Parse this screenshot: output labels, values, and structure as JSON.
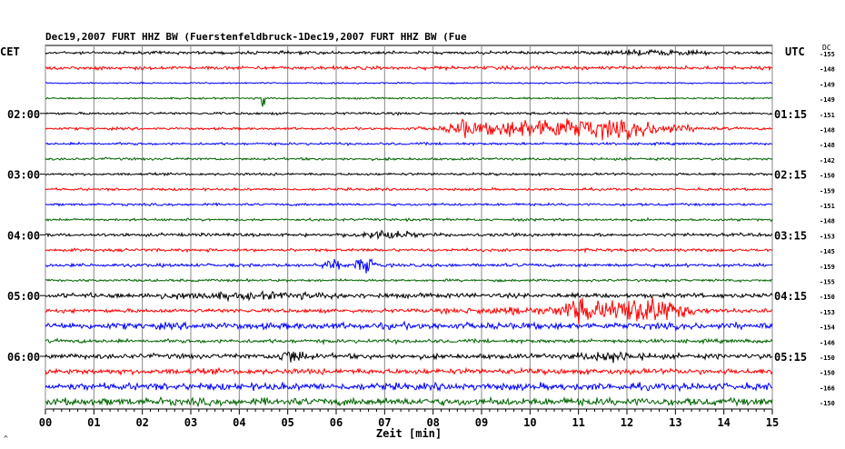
{
  "header": {
    "title": "Dec19,2007   FURT HHZ BW (Fuerstenfeldbruck-1Dec19,2007   FURT HHZ BW (Fue",
    "left_timezone": "CET",
    "right_timezone": "UTC",
    "dc_label": "DC",
    "corner_mark": "^"
  },
  "chart_data": {
    "type": "line",
    "title": "Dec19,2007   FURT HHZ BW (Fuerstenfeldbruck-1Dec19,2007   FURT HHZ BW (Fue",
    "xlabel": "Zeit [min]",
    "x_range": [
      0,
      15
    ],
    "x_ticks": [
      "00",
      "01",
      "02",
      "03",
      "04",
      "05",
      "06",
      "07",
      "08",
      "09",
      "10",
      "11",
      "12",
      "13",
      "14",
      "15"
    ],
    "grid": true,
    "left_hour_labels": [
      {
        "trace": 4,
        "label": "02:00"
      },
      {
        "trace": 8,
        "label": "03:00"
      },
      {
        "trace": 12,
        "label": "04:00"
      },
      {
        "trace": 16,
        "label": "05:00"
      },
      {
        "trace": 20,
        "label": "06:00"
      }
    ],
    "right_hour_labels": [
      {
        "trace": 4,
        "label": "01:15"
      },
      {
        "trace": 8,
        "label": "02:15"
      },
      {
        "trace": 12,
        "label": "03:15"
      },
      {
        "trace": 16,
        "label": "04:15"
      },
      {
        "trace": 20,
        "label": "05:15"
      }
    ],
    "colors": [
      "#000000",
      "#ff0000",
      "#0000ff",
      "#006400"
    ],
    "traces": [
      {
        "dc": "-155",
        "noise": 1.2,
        "events": [
          {
            "t": 12.5,
            "w": 1.2,
            "a": 1.5
          }
        ]
      },
      {
        "dc": "-148",
        "noise": 1.4,
        "events": []
      },
      {
        "dc": "-149",
        "noise": 0.6,
        "events": []
      },
      {
        "dc": "-149",
        "noise": 0.7,
        "events": [
          {
            "t": 4.5,
            "w": 0.05,
            "a": 14
          }
        ]
      },
      {
        "dc": "-151",
        "noise": 1.0,
        "events": []
      },
      {
        "dc": "-148",
        "noise": 1.0,
        "events": [
          {
            "t": 8.6,
            "w": 0.3,
            "a": 6
          },
          {
            "t": 10.4,
            "w": 2.2,
            "a": 8
          },
          {
            "t": 12.3,
            "w": 1.4,
            "a": 4
          }
        ]
      },
      {
        "dc": "-148",
        "noise": 1.0,
        "events": []
      },
      {
        "dc": "-142",
        "noise": 1.0,
        "events": []
      },
      {
        "dc": "-150",
        "noise": 1.0,
        "events": []
      },
      {
        "dc": "-159",
        "noise": 1.0,
        "events": []
      },
      {
        "dc": "-151",
        "noise": 1.0,
        "events": []
      },
      {
        "dc": "-148",
        "noise": 1.0,
        "events": []
      },
      {
        "dc": "-153",
        "noise": 1.3,
        "events": [
          {
            "t": 7.0,
            "w": 0.8,
            "a": 3
          }
        ]
      },
      {
        "dc": "-145",
        "noise": 1.2,
        "events": []
      },
      {
        "dc": "-159",
        "noise": 1.3,
        "events": [
          {
            "t": 5.9,
            "w": 0.3,
            "a": 4
          },
          {
            "t": 6.6,
            "w": 0.3,
            "a": 6
          }
        ]
      },
      {
        "dc": "-155",
        "noise": 1.0,
        "events": []
      },
      {
        "dc": "-150",
        "noise": 1.8,
        "events": [
          {
            "t": 4.0,
            "w": 3.0,
            "a": 1.5
          }
        ]
      },
      {
        "dc": "-153",
        "noise": 1.6,
        "events": [
          {
            "t": 9.7,
            "w": 1.5,
            "a": 2
          },
          {
            "t": 11.0,
            "w": 0.5,
            "a": 8
          },
          {
            "t": 12.3,
            "w": 1.2,
            "a": 12
          }
        ]
      },
      {
        "dc": "-154",
        "noise": 2.6,
        "events": []
      },
      {
        "dc": "-146",
        "noise": 1.5,
        "events": []
      },
      {
        "dc": "-150",
        "noise": 2.0,
        "events": [
          {
            "t": 5.1,
            "w": 0.4,
            "a": 5
          },
          {
            "t": 11.7,
            "w": 0.8,
            "a": 3
          }
        ]
      },
      {
        "dc": "-150",
        "noise": 2.2,
        "events": []
      },
      {
        "dc": "-166",
        "noise": 2.8,
        "events": []
      },
      {
        "dc": "-150",
        "noise": 3.0,
        "events": []
      }
    ]
  }
}
